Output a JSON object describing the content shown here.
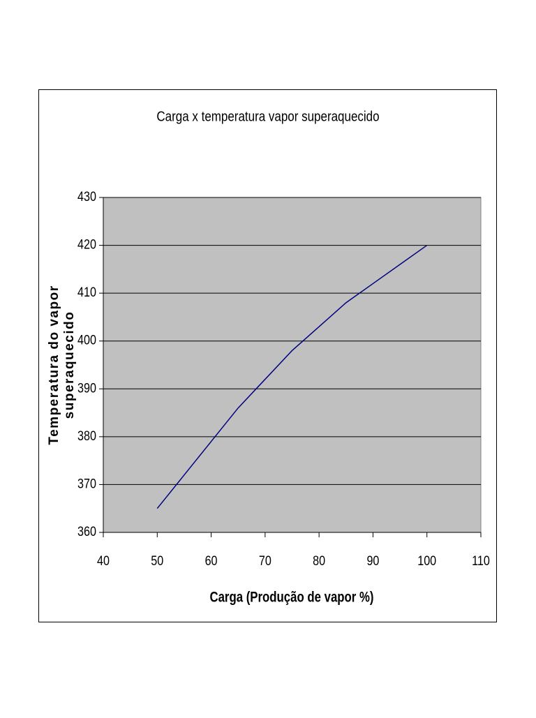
{
  "chart_data": {
    "type": "line",
    "title": "Carga x temperatura vapor superaquecido",
    "xlabel": "Carga (Produção de vapor %)",
    "ylabel": [
      "Temperatura do vapor",
      "superaquecido"
    ],
    "x": [
      50,
      55,
      60,
      65,
      70,
      75,
      80,
      85,
      90,
      95,
      100
    ],
    "series": [
      {
        "color": "#000080",
        "values": [
          365,
          372,
          379,
          386,
          392,
          398,
          403,
          408,
          412,
          416,
          420
        ]
      }
    ],
    "xlim": [
      40,
      110
    ],
    "xticks": [
      40,
      50,
      60,
      70,
      80,
      90,
      100,
      110
    ],
    "ylim": [
      360,
      430
    ],
    "yticks": [
      360,
      370,
      380,
      390,
      400,
      410,
      420,
      430
    ],
    "grid": true,
    "plot_background": "#c0c0c0"
  }
}
